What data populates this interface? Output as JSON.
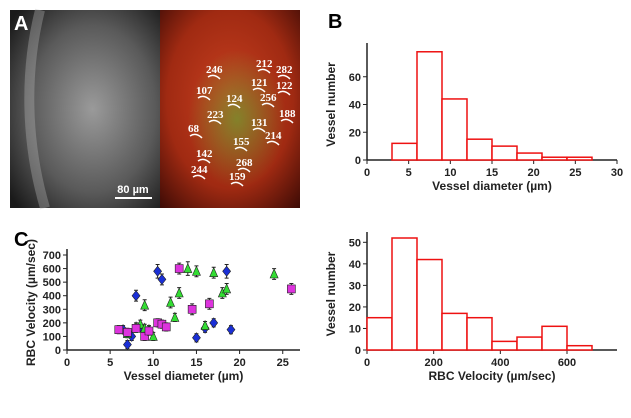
{
  "image_panel": {
    "panel_label": "A",
    "scale_bar": "80 µm",
    "vessel_labels": [
      "246",
      "212",
      "282",
      "121",
      "122",
      "107",
      "124",
      "256",
      "188",
      "223",
      "131",
      "214",
      "68",
      "155",
      "142",
      "268",
      "244",
      "159"
    ]
  },
  "chart_data": [
    {
      "type": "histogram",
      "panel_label": "B",
      "xlabel": "Vessel diameter (µm)",
      "ylabel": "Vessel number",
      "bins": [
        3,
        6,
        9,
        12,
        15,
        18,
        21,
        24,
        27
      ],
      "values": [
        12,
        78,
        44,
        15,
        10,
        5,
        2,
        2
      ],
      "color": "#ee1111",
      "xlim": [
        0,
        30
      ],
      "xticks": [
        0,
        5,
        10,
        15,
        20,
        25,
        30
      ],
      "ylim": [
        0,
        80
      ],
      "yticks": [
        0,
        20,
        40,
        60
      ]
    },
    {
      "type": "scatter",
      "panel_label": "C",
      "xlabel": "Vessel diameter (µm)",
      "ylabel": "RBC Velocity (µm/sec)",
      "xlim": [
        0,
        27
      ],
      "xticks": [
        0,
        5,
        10,
        15,
        20,
        25
      ],
      "ylim": [
        0,
        700
      ],
      "yticks": [
        0,
        100,
        200,
        300,
        400,
        500,
        600,
        700
      ],
      "series": [
        {
          "color": "#1a2fd6",
          "marker": "diamond",
          "x": [
            6.5,
            7,
            7.5,
            8,
            8.5,
            10.5,
            11,
            15,
            16,
            17,
            18.5,
            19
          ],
          "values": [
            150,
            40,
            100,
            400,
            170,
            580,
            520,
            90,
            160,
            200,
            580,
            150
          ],
          "errors": [
            30,
            30,
            30,
            40,
            30,
            50,
            40,
            30,
            30,
            30,
            50,
            30
          ]
        },
        {
          "color": "#33dd33",
          "marker": "triangle",
          "x": [
            7,
            8,
            8.5,
            9,
            9.5,
            10,
            12,
            12.5,
            13,
            14,
            15,
            16,
            17,
            18,
            18.5,
            24,
            9
          ],
          "values": [
            120,
            170,
            190,
            330,
            150,
            100,
            350,
            240,
            420,
            600,
            580,
            180,
            570,
            420,
            450,
            560,
            160
          ],
          "errors": [
            30,
            30,
            30,
            40,
            30,
            30,
            40,
            30,
            40,
            50,
            40,
            30,
            40,
            40,
            40,
            40,
            30
          ]
        },
        {
          "color": "#dd33dd",
          "marker": "square",
          "x": [
            6,
            7,
            8,
            9,
            9.5,
            10.5,
            11,
            13,
            14.5,
            16.5,
            26,
            11.5
          ],
          "values": [
            150,
            130,
            160,
            100,
            140,
            200,
            190,
            600,
            300,
            340,
            450,
            170
          ],
          "errors": [
            30,
            30,
            30,
            30,
            30,
            30,
            30,
            40,
            40,
            40,
            40,
            30
          ]
        }
      ]
    },
    {
      "type": "histogram",
      "xlabel": "RBC Velocity (µm/sec)",
      "ylabel": "Vessel number",
      "bins": [
        0,
        75,
        150,
        225,
        300,
        375,
        450,
        525,
        600,
        675
      ],
      "values": [
        15,
        52,
        42,
        17,
        15,
        4,
        6,
        11,
        2
      ],
      "color": "#ee1111",
      "xlim": [
        0,
        750
      ],
      "xticks": [
        0,
        200,
        400,
        600
      ],
      "ylim": [
        0,
        52
      ],
      "yticks": [
        0,
        10,
        20,
        30,
        40,
        50
      ]
    }
  ]
}
